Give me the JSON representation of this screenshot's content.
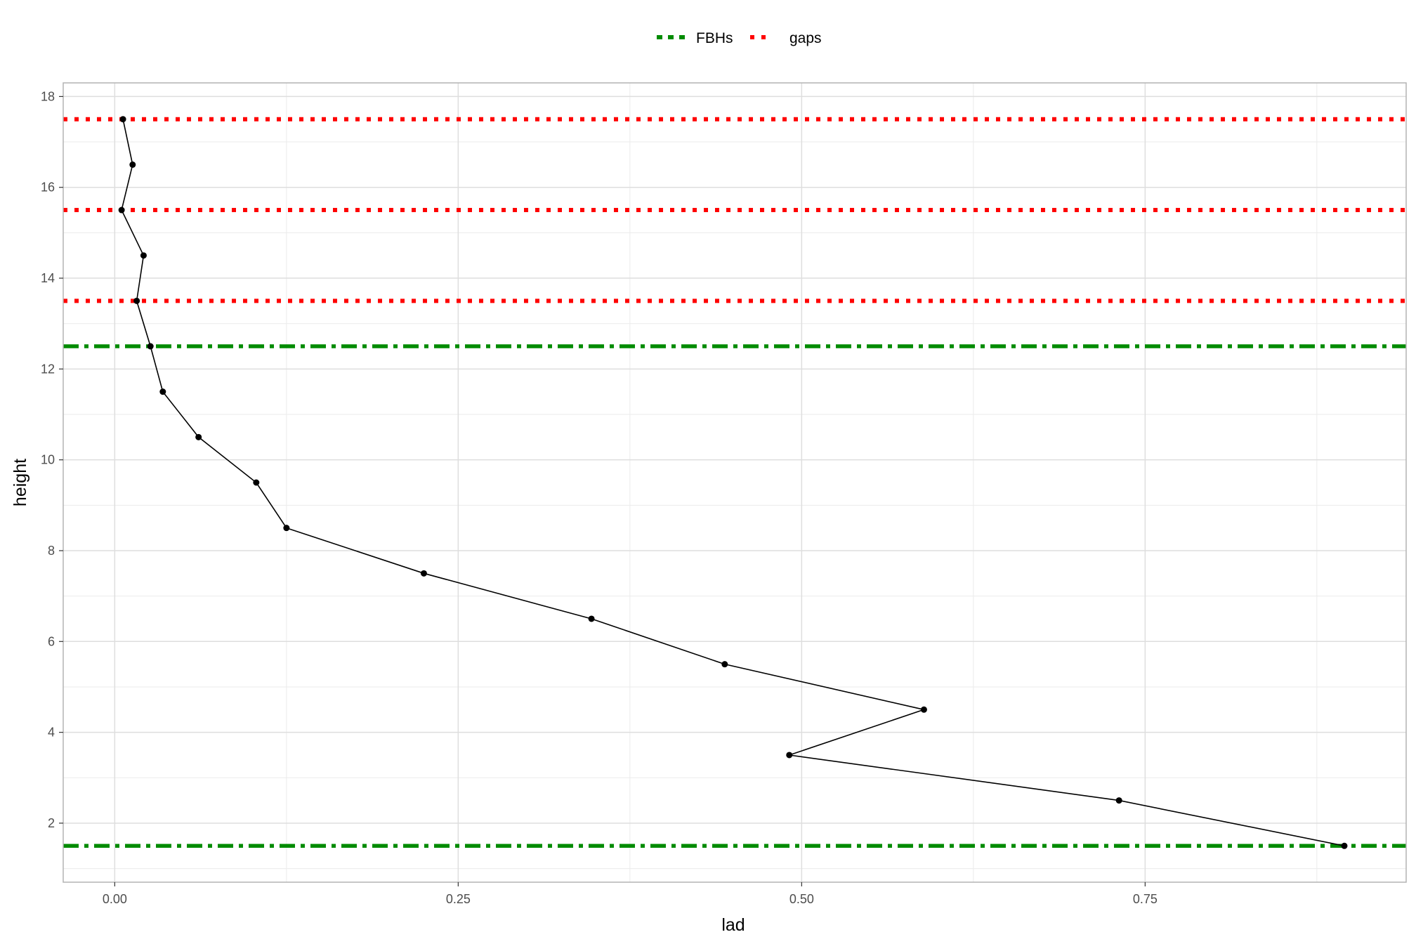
{
  "chart_data": {
    "type": "line",
    "xlabel": "lad",
    "ylabel": "height",
    "xlim": [
      -0.0375,
      0.94
    ],
    "ylim": [
      0.7,
      18.3
    ],
    "x_ticks": [
      0.0,
      0.25,
      0.5,
      0.75
    ],
    "x_tick_labels": [
      "0.00",
      "0.25",
      "0.50",
      "0.75"
    ],
    "x_minor_ticks": [
      0.125,
      0.375,
      0.625,
      0.875
    ],
    "y_ticks": [
      2,
      4,
      6,
      8,
      10,
      12,
      14,
      16,
      18
    ],
    "y_tick_labels": [
      "2",
      "4",
      "6",
      "8",
      "10",
      "12",
      "14",
      "16",
      "18"
    ],
    "y_minor_ticks": [
      1,
      3,
      5,
      7,
      9,
      11,
      13,
      15,
      17
    ],
    "grid": true,
    "legend_position": "top",
    "series": [
      {
        "color": "#000000",
        "x": [
          0.895,
          0.731,
          0.491,
          0.589,
          0.444,
          0.347,
          0.225,
          0.125,
          0.103,
          0.061,
          0.035,
          0.026,
          0.016,
          0.021,
          0.005,
          0.013,
          0.006
        ],
        "y": [
          1.5,
          2.5,
          3.5,
          4.5,
          5.5,
          6.5,
          7.5,
          8.5,
          9.5,
          10.5,
          11.5,
          12.5,
          13.5,
          14.5,
          15.5,
          16.5,
          17.5
        ]
      }
    ],
    "hlines": [
      {
        "group": "FBHs",
        "y": 1.5,
        "color": "#008B00",
        "style": "dashdot"
      },
      {
        "group": "FBHs",
        "y": 12.5,
        "color": "#008B00",
        "style": "dashdot"
      },
      {
        "group": "gaps",
        "y": 13.5,
        "color": "#FF0000",
        "style": "dotted"
      },
      {
        "group": "gaps",
        "y": 15.5,
        "color": "#FF0000",
        "style": "dotted"
      },
      {
        "group": "gaps",
        "y": 17.5,
        "color": "#FF0000",
        "style": "dotted"
      }
    ],
    "legend": [
      {
        "label": "FBHs",
        "color": "#008B00",
        "style": "dashdot"
      },
      {
        "label": "gaps",
        "color": "#FF0000",
        "style": "dotted"
      }
    ]
  }
}
